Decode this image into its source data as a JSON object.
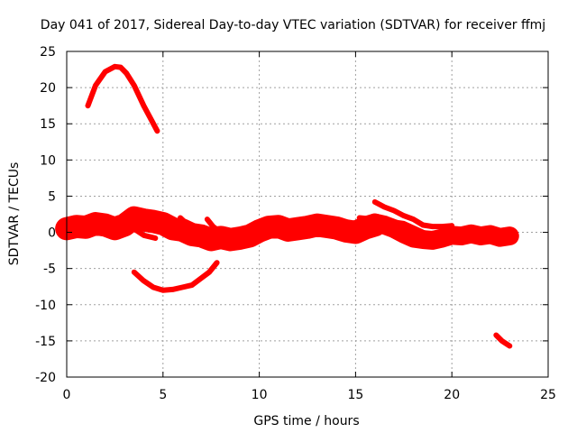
{
  "chart_data": {
    "type": "line",
    "title": "Day 041 of 2017, Sidereal Day-to-day VTEC variation (SDTVAR) for receiver ffmj",
    "xlabel": "GPS time / hours",
    "ylabel": "SDTVAR / TECUs",
    "xlim": [
      0,
      25
    ],
    "ylim": [
      -20,
      25
    ],
    "xticks": [
      0,
      5,
      10,
      15,
      20,
      25
    ],
    "yticks": [
      -20,
      -15,
      -10,
      -5,
      0,
      5,
      10,
      15,
      20,
      25
    ],
    "xtick_labels": [
      "0",
      "5",
      "10",
      "15",
      "20",
      "25"
    ],
    "ytick_labels": [
      "-20",
      "-15",
      "-10",
      "-5",
      "0",
      "5",
      "10",
      "15",
      "20",
      "25"
    ],
    "grid": true,
    "legend": "none",
    "color": "#ff0000",
    "series": [
      {
        "name": "arc-high",
        "x": [
          1.1,
          1.5,
          2.0,
          2.5,
          2.8,
          3.1,
          3.5,
          4.0,
          4.4,
          4.7
        ],
        "y": [
          17.5,
          20.3,
          22.2,
          22.9,
          22.8,
          22.0,
          20.3,
          17.5,
          15.5,
          14.0
        ]
      },
      {
        "name": "band-main",
        "x": [
          0.0,
          0.5,
          1.0,
          1.5,
          2.0,
          2.5,
          3.0,
          3.5,
          4.0,
          4.5,
          5.0,
          5.5,
          6.0,
          6.5,
          7.0,
          7.5,
          8.0,
          8.5,
          9.0,
          9.5,
          10.0,
          10.5,
          11.0,
          11.5,
          12.0,
          12.5,
          13.0,
          13.5,
          14.0,
          14.5,
          15.0,
          15.5,
          16.0
        ],
        "y": [
          0.5,
          0.8,
          0.7,
          1.2,
          1.0,
          0.5,
          1.0,
          2.0,
          1.7,
          1.5,
          1.2,
          0.5,
          0.3,
          -0.3,
          -0.5,
          -1.0,
          -0.7,
          -1.0,
          -0.8,
          -0.5,
          0.2,
          0.7,
          0.8,
          0.3,
          0.5,
          0.7,
          1.0,
          0.8,
          0.6,
          0.2,
          0.0,
          0.6,
          1.0
        ],
        "width": 3.2
      },
      {
        "name": "band-late",
        "x": [
          16.0,
          16.5,
          17.0,
          17.5,
          18.0,
          18.5,
          19.0,
          19.5,
          20.0,
          20.5,
          21.0,
          21.5,
          22.0,
          22.5,
          23.0
        ],
        "y": [
          1.3,
          1.0,
          0.5,
          -0.2,
          -0.8,
          -1.0,
          -1.1,
          -0.8,
          -0.4,
          -0.5,
          -0.2,
          -0.5,
          -0.3,
          -0.7,
          -0.5
        ],
        "width": 2.6
      },
      {
        "name": "upper-right",
        "x": [
          16.0,
          16.5,
          17.0,
          17.5,
          18.0,
          18.5,
          19.0,
          19.5,
          20.0
        ],
        "y": [
          4.2,
          3.5,
          3.0,
          2.3,
          1.8,
          1.0,
          0.8,
          0.8,
          0.9
        ]
      },
      {
        "name": "mid-right",
        "x": [
          15.2,
          16.0,
          17.0,
          17.5,
          18.0,
          18.5,
          19.0
        ],
        "y": [
          2.0,
          1.8,
          1.4,
          1.2,
          0.6,
          0.0,
          -0.6
        ]
      },
      {
        "name": "spur-a",
        "x": [
          3.6,
          4.0,
          4.6
        ],
        "y": [
          0.3,
          -0.4,
          -0.8
        ]
      },
      {
        "name": "spur-b",
        "x": [
          5.9,
          6.3,
          7.0
        ],
        "y": [
          2.0,
          1.0,
          0.4
        ]
      },
      {
        "name": "spur-c",
        "x": [
          7.3,
          7.6,
          8.0
        ],
        "y": [
          1.8,
          0.8,
          0.0
        ]
      },
      {
        "name": "arc-low",
        "x": [
          3.5,
          4.0,
          4.5,
          5.0,
          5.5,
          6.0,
          6.5,
          7.0,
          7.4,
          7.8
        ],
        "y": [
          -5.5,
          -6.7,
          -7.6,
          -8.0,
          -7.9,
          -7.6,
          -7.3,
          -6.3,
          -5.5,
          -4.2
        ]
      },
      {
        "name": "tail-low",
        "x": [
          22.3,
          22.6,
          23.0
        ],
        "y": [
          -14.2,
          -15.0,
          -15.7
        ]
      }
    ]
  }
}
